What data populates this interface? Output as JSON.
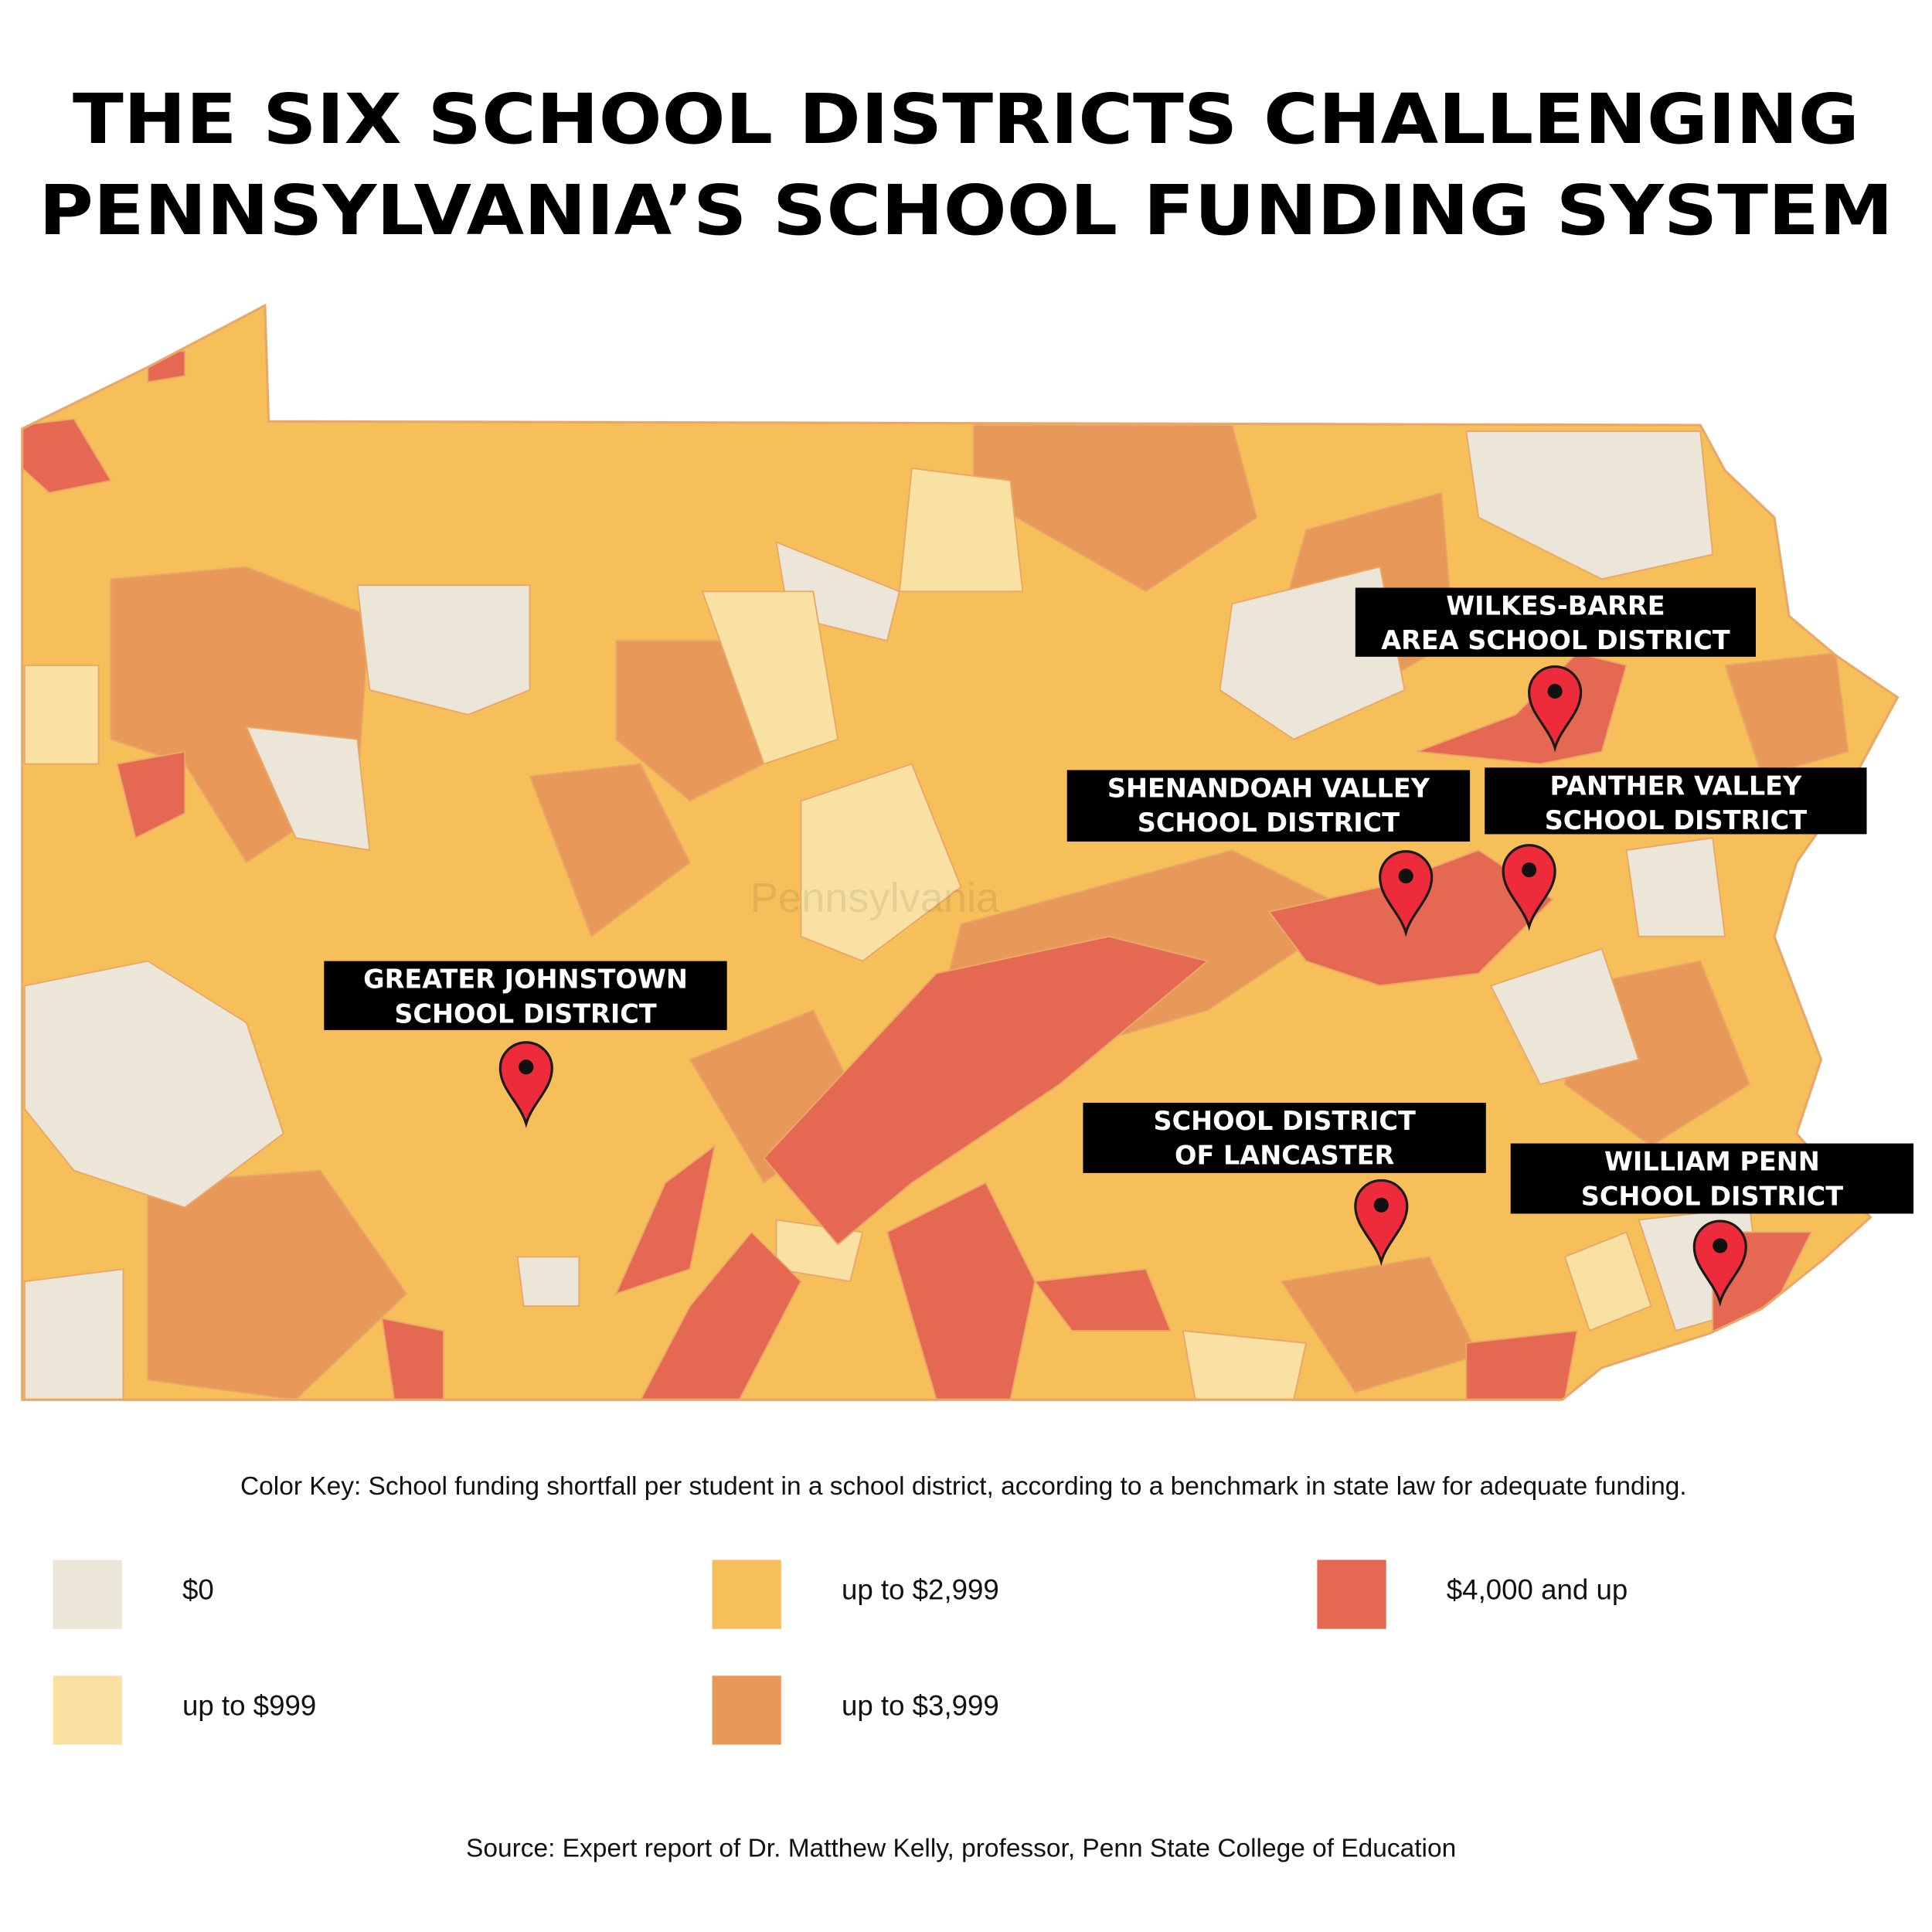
{
  "title": {
    "lines": [
      "THE SIX SCHOOL DISTRICTS CHALLENGING",
      "PENNSYLVANIA’S SCHOOL FUNDING SYSTEM"
    ]
  },
  "map": {
    "watermark": "Pennsylvania",
    "markers": [
      {
        "label": [
          "WILKES-BARRE",
          "AREA SCHOOL DISTRICT"
        ]
      },
      {
        "label": [
          "SHENANDOAH VALLEY",
          "SCHOOL DISTRICT"
        ]
      },
      {
        "label": [
          "PANTHER VALLEY",
          "SCHOOL DISTRICT"
        ]
      },
      {
        "label": [
          "GREATER JOHNSTOWN",
          "SCHOOL DISTRICT"
        ]
      },
      {
        "label": [
          "SCHOOL DISTRICT",
          "OF LANCASTER"
        ]
      },
      {
        "label": [
          "WILLIAM PENN",
          "SCHOOL DISTRICT"
        ]
      }
    ]
  },
  "legend": {
    "caption": "Color Key: School funding shortfall per student in a school district, according to a benchmark in state law for adequate funding.",
    "items": [
      {
        "label": "$0",
        "color": "#ece6d8"
      },
      {
        "label": "up to $999",
        "color": "#f9e1a3"
      },
      {
        "label": "up to $2,999",
        "color": "#f6bf5a"
      },
      {
        "label": "up to $3,999",
        "color": "#e8995a"
      },
      {
        "label": "$4,000 and up",
        "color": "#e56852"
      }
    ]
  },
  "source": "Source: Expert report of Dr. Matthew Kelly, professor, Penn State College of Education"
}
